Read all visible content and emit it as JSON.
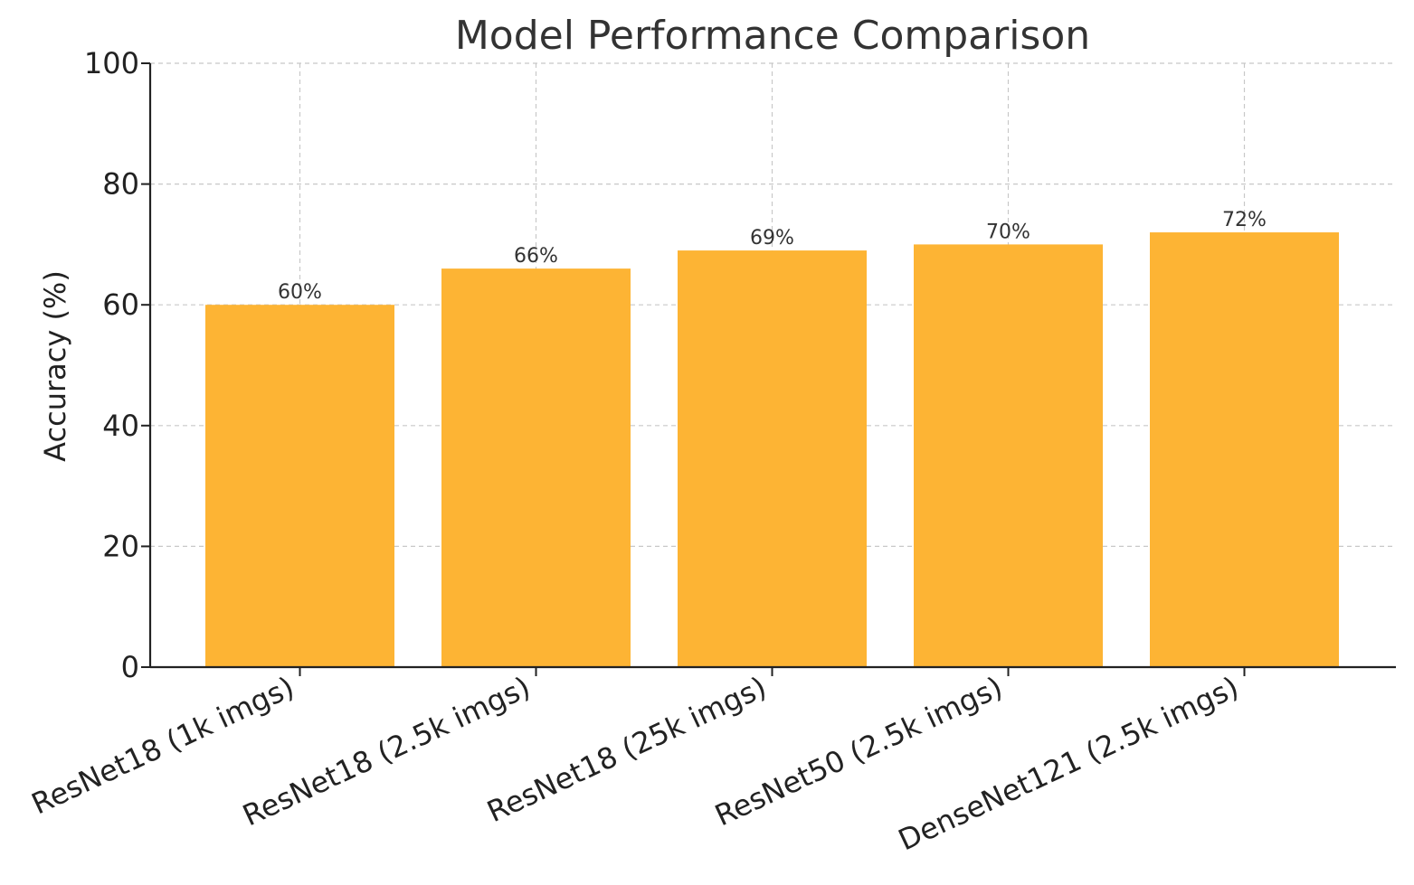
{
  "chart_data": {
    "type": "bar",
    "title": "Model Performance Comparison",
    "xlabel": "",
    "ylabel": "Accuracy (%)",
    "categories": [
      "ResNet18 (1k imgs)",
      "ResNet18 (2.5k imgs)",
      "ResNet18 (25k imgs)",
      "ResNet50 (2.5k imgs)",
      "DenseNet121 (2.5k imgs)"
    ],
    "values": [
      60,
      66,
      69,
      70,
      72
    ],
    "data_labels": [
      "60%",
      "66%",
      "69%",
      "70%",
      "72%"
    ],
    "ylim": [
      0,
      100
    ],
    "yticks": [
      0,
      20,
      40,
      60,
      80,
      100
    ],
    "grid": true,
    "legend": "none",
    "bar_color": "#FDB434"
  }
}
